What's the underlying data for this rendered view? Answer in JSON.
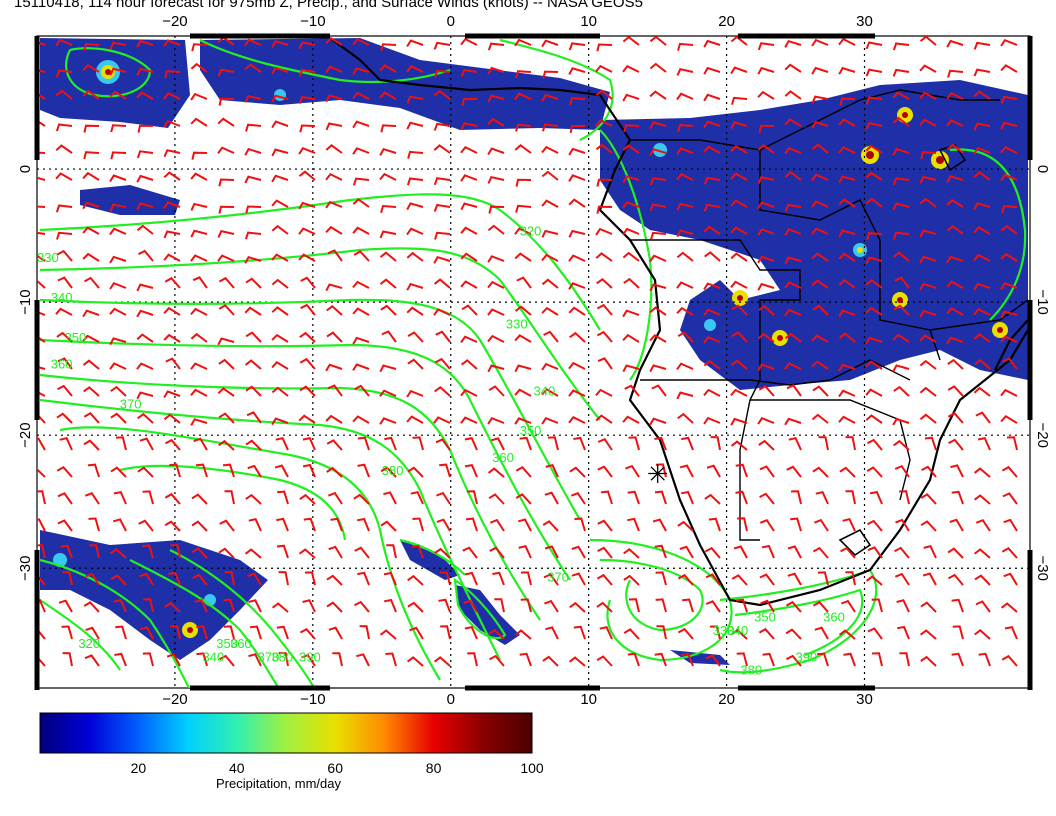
{
  "title": "15110418, 114 hour forecast for 975mb Z, Precip., and Surface Winds (knots) -- NASA GEOS5",
  "map": {
    "lon_range": [
      -30,
      42
    ],
    "lat_range": [
      -39,
      10
    ],
    "lon_ticks": [
      {
        "lon": -20,
        "label": "−20"
      },
      {
        "lon": -10,
        "label": "−10"
      },
      {
        "lon": 0,
        "label": "0"
      },
      {
        "lon": 10,
        "label": "10"
      },
      {
        "lon": 20,
        "label": "20"
      },
      {
        "lon": 30,
        "label": "30"
      }
    ],
    "lat_ticks": [
      {
        "lat": 0,
        "label": "0"
      },
      {
        "lat": -10,
        "label": "−10"
      },
      {
        "lat": -20,
        "label": "−20"
      },
      {
        "lat": -30,
        "label": "−30"
      }
    ],
    "marker": {
      "lon": 15,
      "lat": -23,
      "symbol": "✳"
    },
    "contour_color": "#22ee22",
    "wind_barb_color": "#ee1111",
    "coast_color": "#000000",
    "contour_labels": [
      {
        "text": "320",
        "lon": 5,
        "lat": -5
      },
      {
        "text": "330",
        "lon": -30,
        "lat": -7
      },
      {
        "text": "340",
        "lon": -29,
        "lat": -10
      },
      {
        "text": "350",
        "lon": -28,
        "lat": -13
      },
      {
        "text": "360",
        "lon": -29,
        "lat": -15
      },
      {
        "text": "370",
        "lon": -24,
        "lat": -18
      },
      {
        "text": "330",
        "lon": 4,
        "lat": -12
      },
      {
        "text": "340",
        "lon": 6,
        "lat": -17
      },
      {
        "text": "350",
        "lon": 5,
        "lat": -20
      },
      {
        "text": "360",
        "lon": 3,
        "lat": -22
      },
      {
        "text": "380",
        "lon": -5,
        "lat": -23
      },
      {
        "text": "370",
        "lon": 7,
        "lat": -31
      },
      {
        "text": "320",
        "lon": -27,
        "lat": -36
      },
      {
        "text": "340",
        "lon": -18,
        "lat": -37
      },
      {
        "text": "350",
        "lon": -17,
        "lat": -36
      },
      {
        "text": "360",
        "lon": -16,
        "lat": -36
      },
      {
        "text": "370",
        "lon": -14,
        "lat": -37
      },
      {
        "text": "380",
        "lon": -13,
        "lat": -37
      },
      {
        "text": "390",
        "lon": -11,
        "lat": -37
      },
      {
        "text": "330",
        "lon": 19,
        "lat": -35
      },
      {
        "text": "340",
        "lon": 20,
        "lat": -35
      },
      {
        "text": "380",
        "lon": 21,
        "lat": -38
      },
      {
        "text": "390",
        "lon": 25,
        "lat": -37
      },
      {
        "text": "350",
        "lon": 22,
        "lat": -34
      },
      {
        "text": "360",
        "lon": 27,
        "lat": -34
      }
    ]
  },
  "colorbar": {
    "label": "Precipitation, mm/day",
    "ticks": [
      "20",
      "40",
      "60",
      "80",
      "100"
    ],
    "min": 0,
    "max": 100,
    "colors": [
      "#00007a",
      "#0000d8",
      "#0060ff",
      "#00d0ff",
      "#30f0b0",
      "#a0f040",
      "#e8e000",
      "#ff8a00",
      "#e80000",
      "#8a0000",
      "#4a0000"
    ]
  }
}
